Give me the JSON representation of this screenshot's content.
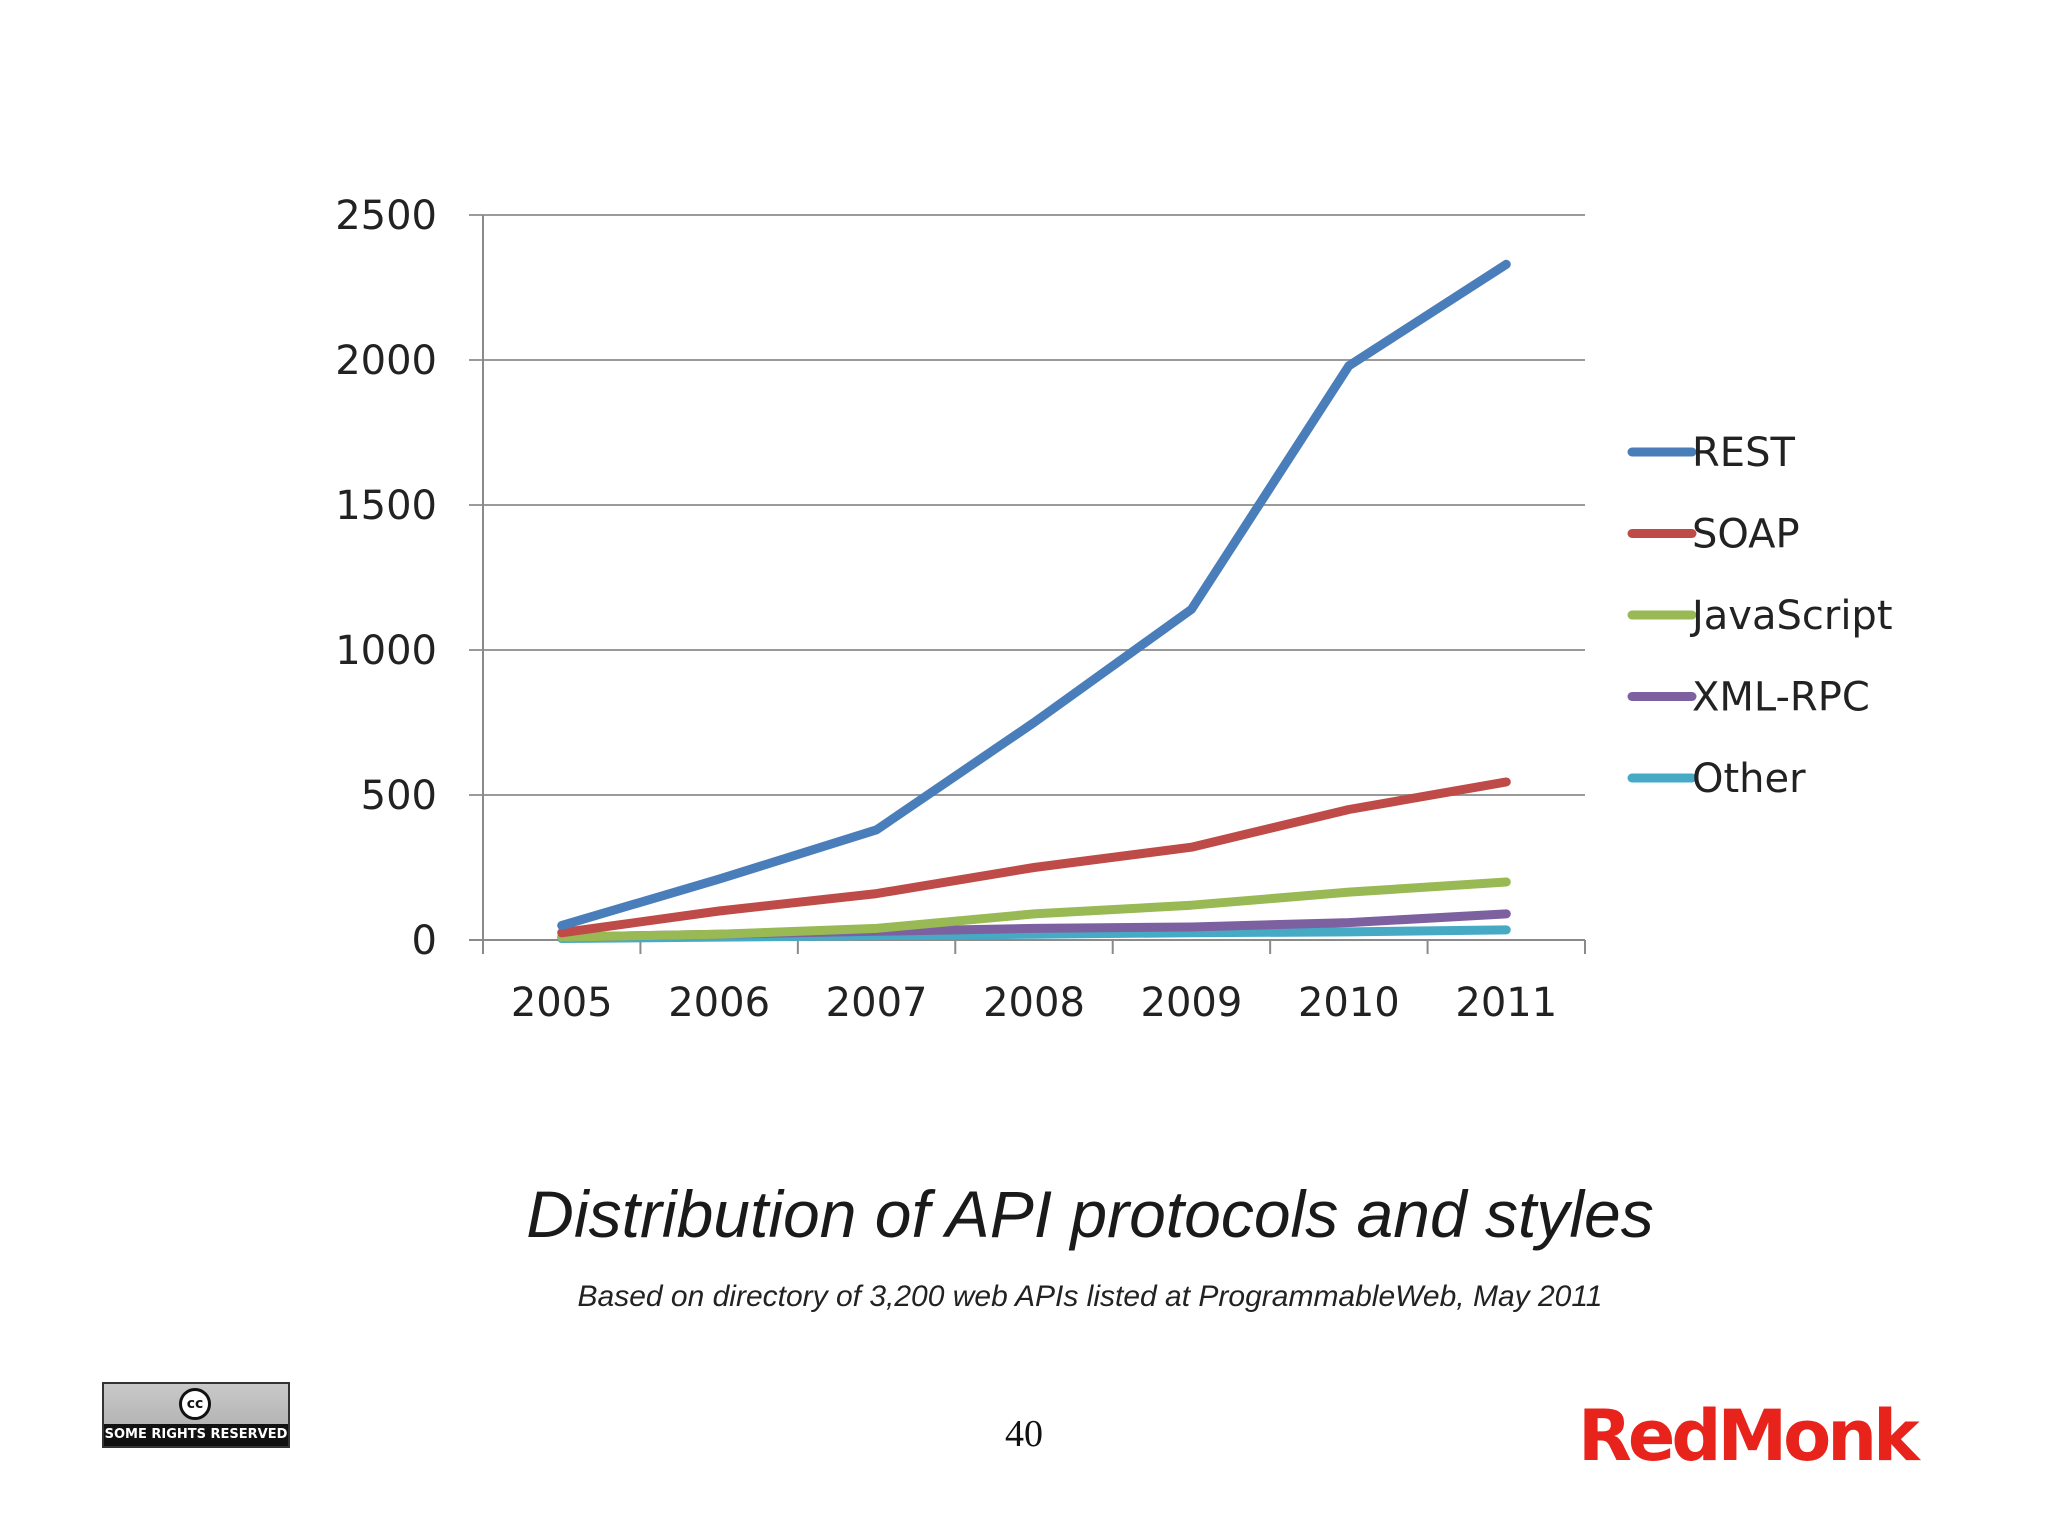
{
  "chart_data": {
    "type": "line",
    "title": "Distribution of API protocols and styles",
    "subtitle": "Based on directory of 3,200 web APIs listed at ProgrammableWeb, May 2011",
    "x": [
      "2005",
      "2006",
      "2007",
      "2008",
      "2009",
      "2010",
      "2011"
    ],
    "y_ticks": [
      0,
      500,
      1000,
      1500,
      2000,
      2500
    ],
    "ylim": [
      0,
      2500
    ],
    "grid": true,
    "legend_position": "right",
    "series": [
      {
        "name": "REST",
        "color": "#4a7ebb",
        "values": [
          50,
          210,
          380,
          750,
          1140,
          1980,
          2330
        ]
      },
      {
        "name": "SOAP",
        "color": "#be4b48",
        "values": [
          25,
          100,
          160,
          250,
          320,
          450,
          545
        ]
      },
      {
        "name": "JavaScript",
        "color": "#98b954",
        "values": [
          10,
          20,
          40,
          90,
          120,
          165,
          200
        ]
      },
      {
        "name": "XML-RPC",
        "color": "#7d60a0",
        "values": [
          10,
          20,
          30,
          40,
          45,
          60,
          90
        ]
      },
      {
        "name": "Other",
        "color": "#46aac5",
        "values": [
          5,
          10,
          15,
          20,
          25,
          28,
          35
        ]
      }
    ]
  },
  "footer": {
    "page_number": "40",
    "license_badge_text": "SOME RIGHTS RESERVED",
    "license_badge_symbol": "cc",
    "brand": "RedMonk",
    "brand_color": "#e8231b"
  }
}
